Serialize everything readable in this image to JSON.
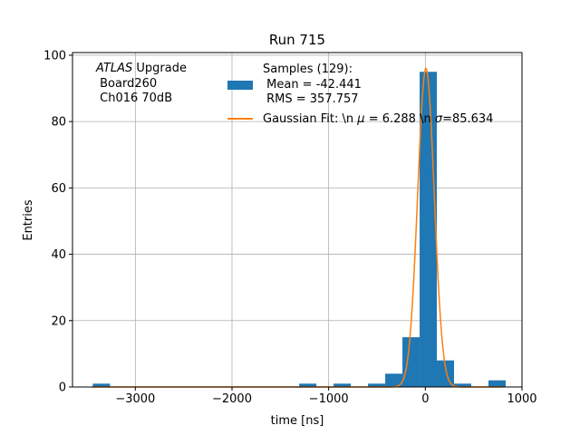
{
  "chart_data": {
    "type": "bar",
    "title": "Run 715",
    "xlabel": "time [ns]",
    "ylabel": "Entries",
    "xlim": [
      -3650,
      1000
    ],
    "ylim": [
      0,
      100.8
    ],
    "grid": true,
    "x_ticks": [
      -3000,
      -2000,
      -1000,
      0,
      1000
    ],
    "x_tick_labels": [
      "−3000",
      "−2000",
      "−1000",
      "0",
      "1000"
    ],
    "y_ticks": [
      0,
      20,
      40,
      60,
      80,
      100
    ],
    "y_tick_labels": [
      "0",
      "20",
      "40",
      "60",
      "80",
      "100"
    ],
    "annotation": {
      "italic_part": "ATLAS",
      "line1_rest": " Upgrade",
      "line2": " Board260",
      "line3": " Ch016 70dB"
    },
    "legend_placement": "top-right",
    "histogram": {
      "color": "#1f77b4",
      "legend_lines": [
        "Samples (129):",
        " Mean = -42.441",
        " RMS = 357.757"
      ],
      "bin_width": 178,
      "bins": [
        {
          "left": -3440,
          "count": 1
        },
        {
          "left": -1305,
          "count": 1
        },
        {
          "left": -949,
          "count": 1
        },
        {
          "left": -593,
          "count": 1
        },
        {
          "left": -415,
          "count": 4
        },
        {
          "left": -237,
          "count": 15
        },
        {
          "left": -59,
          "count": 95
        },
        {
          "left": 119,
          "count": 8
        },
        {
          "left": 297,
          "count": 1
        },
        {
          "left": 653,
          "count": 2
        }
      ]
    },
    "gaussian_fit": {
      "color": "#ff7f0e",
      "legend_prefix": "Gaussian Fit: \\n ",
      "mu_symbol": "μ",
      "mu_value": " = 6.288 \\n ",
      "sigma_symbol": "σ",
      "sigma_value": "=85.634",
      "mu": 6.288,
      "sigma": 85.634,
      "amplitude": 96
    }
  }
}
